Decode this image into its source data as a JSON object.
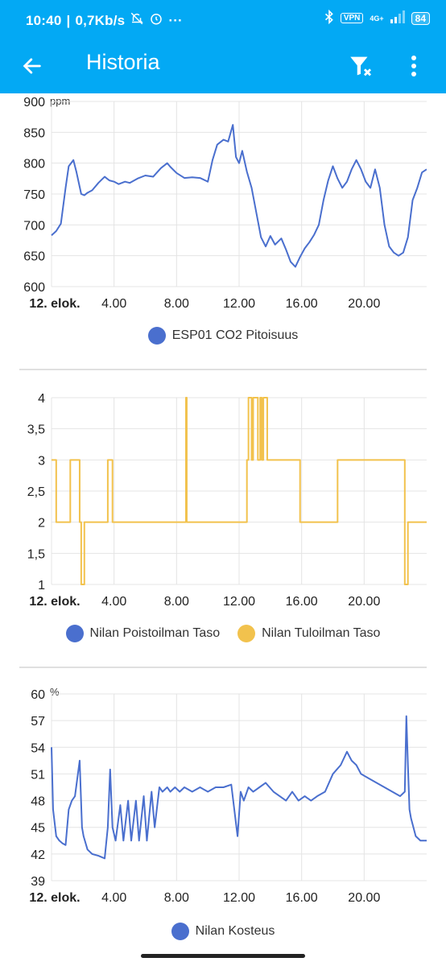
{
  "status_bar": {
    "time": "10:40",
    "speed": "0,7Kb/s",
    "dots": "···",
    "vpn": "VPN",
    "network": "4G+",
    "battery": "84"
  },
  "app_bar": {
    "title": "Historia"
  },
  "colors": {
    "app_bar": "#03a9f4",
    "series_blue": "#4a6fce",
    "series_yellow": "#f2c24d",
    "grid": "#e4e4e4"
  },
  "charts": [
    {
      "id": "co2",
      "unit_label": "ppm",
      "y_ticks": [
        "900",
        "850",
        "800",
        "750",
        "700",
        "650",
        "600"
      ],
      "x_ticks": [
        "12. elok.",
        "4.00",
        "8.00",
        "12.00",
        "16.00",
        "20.00"
      ],
      "legend": [
        {
          "label": "ESP01 CO2 Pitoisuus",
          "color": "#4a6fce"
        }
      ]
    },
    {
      "id": "nilan-taso",
      "unit_label": "",
      "y_ticks": [
        "4",
        "3,5",
        "3",
        "2,5",
        "2",
        "1,5",
        "1"
      ],
      "x_ticks": [
        "12. elok.",
        "4.00",
        "8.00",
        "12.00",
        "16.00",
        "20.00"
      ],
      "legend": [
        {
          "label": "Nilan Poistoilman Taso",
          "color": "#4a6fce"
        },
        {
          "label": "Nilan Tuloilman Taso",
          "color": "#f2c24d"
        }
      ]
    },
    {
      "id": "kosteus",
      "unit_label": "%",
      "y_ticks": [
        "60",
        "57",
        "54",
        "51",
        "48",
        "45",
        "42",
        "39"
      ],
      "x_ticks": [
        "12. elok.",
        "4.00",
        "8.00",
        "12.00",
        "16.00",
        "20.00"
      ],
      "legend": [
        {
          "label": "Nilan Kosteus",
          "color": "#4a6fce"
        }
      ]
    }
  ],
  "chart_data": [
    {
      "type": "line",
      "ylim": [
        600,
        900
      ],
      "xlim": [
        0,
        24
      ],
      "series": [
        {
          "name": "ESP01 CO2 Pitoisuus",
          "x": [
            0,
            0.3,
            0.6,
            0.9,
            1.1,
            1.4,
            1.6,
            1.9,
            2.1,
            2.3,
            2.6,
            3.0,
            3.4,
            3.7,
            4.0,
            4.3,
            4.7,
            5.0,
            5.5,
            6.0,
            6.5,
            7.0,
            7.4,
            7.6,
            8.0,
            8.5,
            9.0,
            9.5,
            10.0,
            10.3,
            10.6,
            11.0,
            11.3,
            11.6,
            11.8,
            12.0,
            12.2,
            12.5,
            12.8,
            13.1,
            13.4,
            13.7,
            14.0,
            14.3,
            14.7,
            15.0,
            15.3,
            15.6,
            15.9,
            16.2,
            16.5,
            16.8,
            17.1,
            17.4,
            17.7,
            18.0,
            18.3,
            18.6,
            18.9,
            19.2,
            19.5,
            19.8,
            20.1,
            20.4,
            20.7,
            21.0,
            21.3,
            21.6,
            21.9,
            22.2,
            22.5,
            22.8,
            23.1,
            23.4,
            23.7,
            24.0
          ],
          "y": [
            683,
            690,
            702,
            760,
            795,
            805,
            785,
            750,
            748,
            752,
            756,
            768,
            778,
            772,
            770,
            766,
            770,
            768,
            775,
            780,
            778,
            792,
            800,
            794,
            784,
            776,
            777,
            776,
            770,
            805,
            830,
            838,
            835,
            862,
            810,
            800,
            820,
            786,
            760,
            720,
            680,
            665,
            682,
            668,
            678,
            660,
            640,
            632,
            648,
            662,
            672,
            684,
            700,
            740,
            772,
            795,
            775,
            760,
            770,
            790,
            805,
            790,
            770,
            760,
            790,
            760,
            700,
            665,
            655,
            650,
            655,
            680,
            740,
            760,
            785,
            790
          ]
        }
      ]
    },
    {
      "type": "line",
      "ylim": [
        1,
        4
      ],
      "xlim": [
        0,
        24
      ],
      "series": [
        {
          "name": "Nilan Poistoilman Taso",
          "x": [],
          "y": []
        },
        {
          "name": "Nilan Tuloilman Taso",
          "step": true,
          "x": [
            0,
            0.3,
            1.2,
            1.8,
            1.9,
            2.1,
            3.6,
            3.9,
            8.6,
            8.65,
            8.7,
            12.5,
            12.6,
            12.8,
            12.9,
            13.2,
            13.35,
            13.45,
            13.55,
            13.8,
            15.9,
            18.3,
            22.6,
            22.8,
            24
          ],
          "y": [
            3,
            2,
            3,
            2,
            1,
            2,
            3,
            2,
            4,
            2,
            2,
            3,
            4,
            3,
            4,
            3,
            4,
            3,
            4,
            3,
            2,
            3,
            1,
            2,
            2
          ]
        }
      ]
    },
    {
      "type": "line",
      "ylim": [
        39,
        60
      ],
      "xlim": [
        0,
        24
      ],
      "series": [
        {
          "name": "Nilan Kosteus",
          "x": [
            0,
            0.1,
            0.3,
            0.5,
            0.7,
            0.9,
            1.1,
            1.3,
            1.5,
            1.8,
            1.95,
            2.05,
            2.3,
            2.6,
            3.0,
            3.4,
            3.6,
            3.75,
            3.9,
            4.1,
            4.4,
            4.6,
            4.9,
            5.1,
            5.4,
            5.6,
            5.9,
            6.1,
            6.4,
            6.6,
            6.9,
            7.1,
            7.4,
            7.6,
            7.9,
            8.2,
            8.5,
            9.0,
            9.5,
            10.0,
            10.5,
            11.0,
            11.5,
            11.9,
            12.1,
            12.3,
            12.6,
            12.9,
            13.3,
            13.7,
            14.2,
            14.6,
            15.0,
            15.4,
            15.8,
            16.2,
            16.6,
            17.0,
            17.5,
            18.0,
            18.5,
            18.9,
            19.2,
            19.5,
            19.8,
            20.3,
            20.8,
            21.3,
            21.8,
            22.3,
            22.6,
            22.7,
            22.8,
            22.9,
            23.0,
            23.3,
            23.6,
            24.0
          ],
          "y": [
            54,
            47,
            44,
            43.5,
            43.2,
            43,
            47,
            48,
            48.5,
            52.5,
            45,
            44,
            42.5,
            42,
            41.8,
            41.5,
            45,
            51.5,
            45,
            43.5,
            47.5,
            43.5,
            48,
            43.5,
            48,
            43.5,
            48.5,
            43.5,
            49,
            45,
            49.5,
            49,
            49.5,
            49,
            49.5,
            49,
            49.5,
            49,
            49.5,
            49,
            49.5,
            49.5,
            49.8,
            44,
            49,
            48,
            49.5,
            49,
            49.5,
            50,
            49,
            48.5,
            48,
            49,
            48,
            48.5,
            48,
            48.5,
            49,
            51,
            52,
            53.5,
            52.5,
            52,
            51,
            50.5,
            50,
            49.5,
            49,
            48.5,
            49,
            57.5,
            52,
            47,
            46,
            44,
            43.5,
            43.5
          ]
        }
      ]
    }
  ]
}
